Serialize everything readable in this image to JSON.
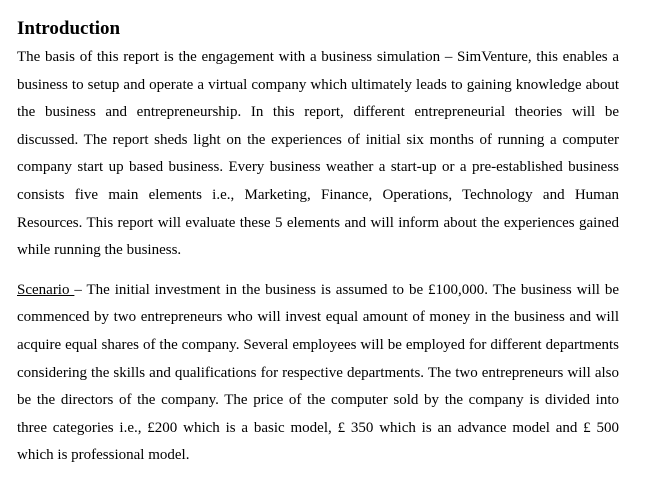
{
  "heading": "Introduction",
  "intro_paragraph": "The basis of this report is the engagement with a business simulation – SimVenture, this enables a business to setup and operate a virtual company which ultimately leads to gaining knowledge about the business and entrepreneurship. In this report, different entrepreneurial theories will be discussed. The report sheds light on the experiences of initial six months of running a computer company start up based business. Every business weather a start-up or a pre-established business consists five main elements i.e., Marketing, Finance, Operations, Technology and Human Resources. This report will evaluate these 5 elements and will inform about the experiences gained while running the business.",
  "scenario": {
    "label": "Scenario ",
    "text": "– The initial investment in the business is assumed to be £100,000. The business will be commenced by two entrepreneurs who will invest equal amount of money in the business and will acquire equal shares of the company. Several employees will be employed for different departments considering the skills and qualifications for respective departments. The two entrepreneurs will also be the directors of the company. The price of the computer sold by the company is divided into three categories i.e., £200 which is a basic model, £ 350 which is an advance model and £ 500 which is professional model."
  }
}
